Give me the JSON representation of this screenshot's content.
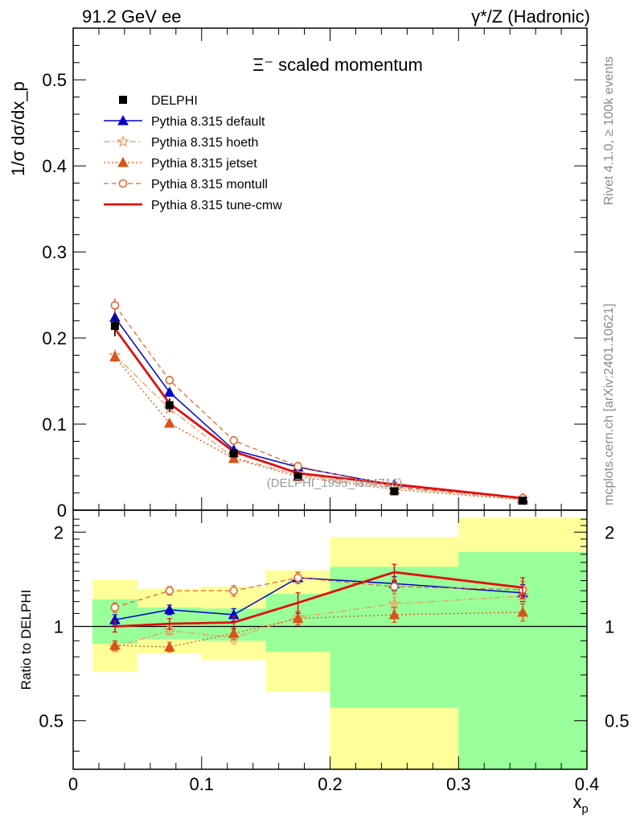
{
  "header": {
    "left": "91.2 GeV ee",
    "right": "γ*/Z (Hadronic)"
  },
  "side_texts": {
    "rivet": "Rivet 4.1.0, ≥ 100k events",
    "mcplots": "mcplots.cern.ch [arXiv:2401.10621]"
  },
  "watermark": "(DELPHI_1995_I394716)",
  "colors": {
    "data": "#000000",
    "default": "#0000cc",
    "hoeth": "#e8a060",
    "jetset": "#d9541a",
    "montull": "#e06a30",
    "tunecmw": "#e01010",
    "band_inner": "#99ff99",
    "band_outer": "#ffff99"
  },
  "chart_data": [
    {
      "type": "line",
      "title": "Ξ⁻ scaled momentum",
      "xlabel": "x_p",
      "ylabel": "1/σ  dσ/dx_p",
      "xlim": [
        0,
        0.4
      ],
      "ylim": [
        0,
        0.56
      ],
      "yticks": [
        0,
        0.1,
        0.2,
        0.3,
        0.4,
        0.5
      ],
      "ytick_labels": [
        "0",
        "0.1",
        "0.2",
        "0.3",
        "0.4",
        "0.5"
      ],
      "x": [
        0.0325,
        0.075,
        0.125,
        0.175,
        0.25,
        0.35
      ],
      "data": {
        "name": "DELPHI",
        "values": [
          0.214,
          0.122,
          0.066,
          0.039,
          0.022,
          0.011
        ],
        "errors": [
          0.012,
          0.008,
          0.005,
          0.004,
          0.003,
          0.002
        ]
      },
      "series": [
        {
          "name": "Pythia 8.315 default",
          "key": "default",
          "values": [
            0.224,
            0.137,
            0.07,
            0.05,
            0.029,
            0.014
          ],
          "errors": [
            0.008,
            0.005,
            0.003,
            0.002,
            0.002,
            0.001
          ]
        },
        {
          "name": "Pythia 8.315 hoeth",
          "key": "hoeth",
          "values": [
            0.18,
            0.118,
            0.061,
            0.041,
            0.026,
            0.013
          ],
          "errors": [
            0.006,
            0.004,
            0.003,
            0.002,
            0.002,
            0.001
          ]
        },
        {
          "name": "Pythia 8.315 jetset",
          "key": "jetset",
          "values": [
            0.178,
            0.101,
            0.06,
            0.039,
            0.024,
            0.012
          ],
          "errors": [
            0.006,
            0.004,
            0.003,
            0.002,
            0.002,
            0.001
          ]
        },
        {
          "name": "Pythia 8.315 montull",
          "key": "montull",
          "values": [
            0.238,
            0.151,
            0.081,
            0.051,
            0.027,
            0.014
          ],
          "errors": [
            0.008,
            0.005,
            0.003,
            0.002,
            0.002,
            0.001
          ]
        },
        {
          "name": "Pythia 8.315 tune-cmw",
          "key": "tunecmw",
          "values": [
            0.211,
            0.124,
            0.068,
            0.043,
            0.03,
            0.014
          ],
          "errors": [
            0.008,
            0.005,
            0.003,
            0.002,
            0.002,
            0.001
          ]
        }
      ]
    },
    {
      "type": "line",
      "title": "",
      "xlabel": "x_p",
      "ylabel": "Ratio to DELPHI",
      "xlim": [
        0,
        0.4
      ],
      "ylim": [
        0.35,
        2.35
      ],
      "yticks": [
        0.5,
        1,
        2
      ],
      "ytick_labels": [
        "0.5",
        "1",
        "2"
      ],
      "xticks": [
        0,
        0.1,
        0.2,
        0.3,
        0.4
      ],
      "xtick_labels": [
        "0",
        "0.1",
        "0.2",
        "0.3",
        "0.4"
      ],
      "x": [
        0.0325,
        0.075,
        0.125,
        0.175,
        0.25,
        0.35
      ],
      "bins": [
        [
          0.015,
          0.05
        ],
        [
          0.05,
          0.1
        ],
        [
          0.1,
          0.15
        ],
        [
          0.15,
          0.2
        ],
        [
          0.2,
          0.3
        ],
        [
          0.3,
          0.4
        ]
      ],
      "band_inner": [
        [
          0.88,
          1.22
        ],
        [
          0.91,
          1.15
        ],
        [
          0.9,
          1.14
        ],
        [
          0.83,
          1.27
        ],
        [
          0.55,
          1.55
        ],
        [
          0.35,
          1.73
        ]
      ],
      "band_outer": [
        [
          0.72,
          1.41
        ],
        [
          0.82,
          1.32
        ],
        [
          0.78,
          1.34
        ],
        [
          0.62,
          1.51
        ],
        [
          0.35,
          1.93
        ],
        [
          0.35,
          2.22
        ]
      ],
      "series": [
        {
          "name": "Pythia 8.315 default",
          "key": "default",
          "values": [
            1.05,
            1.13,
            1.09,
            1.43,
            1.37,
            1.28
          ],
          "errors": [
            0.04,
            0.04,
            0.05,
            0.06,
            0.07,
            0.08
          ]
        },
        {
          "name": "Pythia 8.315 hoeth",
          "key": "hoeth",
          "values": [
            0.86,
            0.97,
            0.92,
            1.07,
            1.18,
            1.25
          ],
          "errors": [
            0.03,
            0.03,
            0.04,
            0.05,
            0.06,
            0.07
          ]
        },
        {
          "name": "Pythia 8.315 jetset",
          "key": "jetset",
          "values": [
            0.87,
            0.86,
            0.95,
            1.06,
            1.09,
            1.11
          ],
          "errors": [
            0.03,
            0.03,
            0.04,
            0.05,
            0.06,
            0.07
          ]
        },
        {
          "name": "Pythia 8.315 montull",
          "key": "montull",
          "values": [
            1.15,
            1.3,
            1.3,
            1.43,
            1.34,
            1.31
          ],
          "errors": [
            0.04,
            0.04,
            0.05,
            0.06,
            0.07,
            0.08
          ]
        },
        {
          "name": "Pythia 8.315 tune-cmw",
          "key": "tunecmw",
          "values": [
            1.0,
            1.02,
            1.03,
            1.19,
            1.49,
            1.33
          ],
          "errors": [
            0.04,
            0.04,
            0.05,
            0.09,
            0.09,
            0.1
          ]
        }
      ]
    }
  ]
}
